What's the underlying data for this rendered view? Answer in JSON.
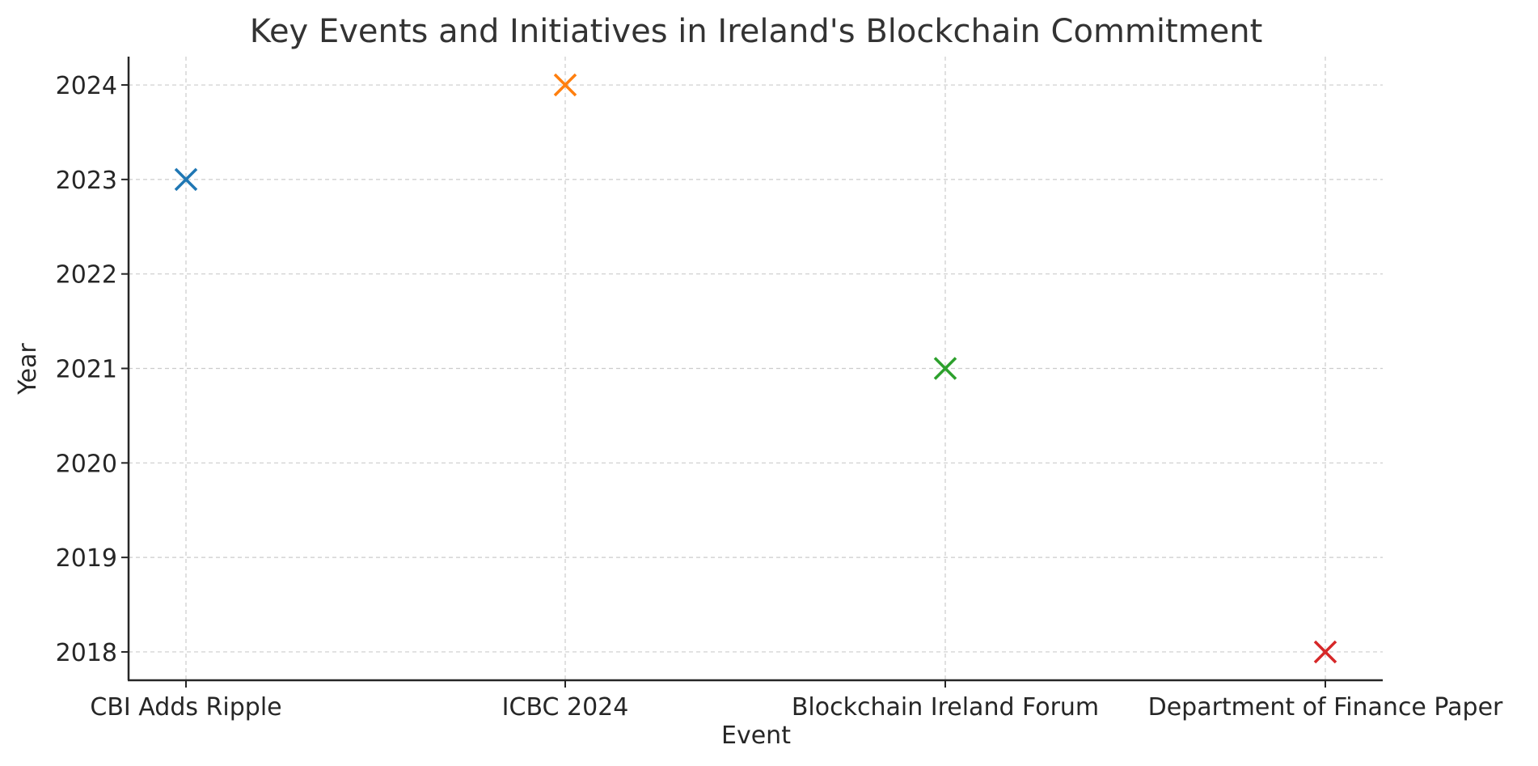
{
  "chart_data": {
    "type": "scatter",
    "title": "Key Events and Initiatives in Ireland's Blockchain Commitment",
    "xlabel": "Event",
    "ylabel": "Year",
    "categories": [
      "CBI Adds Ripple",
      "ICBC 2024",
      "Blockchain Ireland Forum",
      "Department of Finance Paper"
    ],
    "values": [
      2023,
      2024,
      2021,
      2018
    ],
    "colors": [
      "#1f77b4",
      "#ff7f0e",
      "#2ca02c",
      "#d62728"
    ],
    "marker": "x",
    "ylim": [
      2017.7,
      2024.3
    ],
    "yticks": [
      2018,
      2019,
      2020,
      2021,
      2022,
      2023,
      2024
    ],
    "grid": true
  }
}
